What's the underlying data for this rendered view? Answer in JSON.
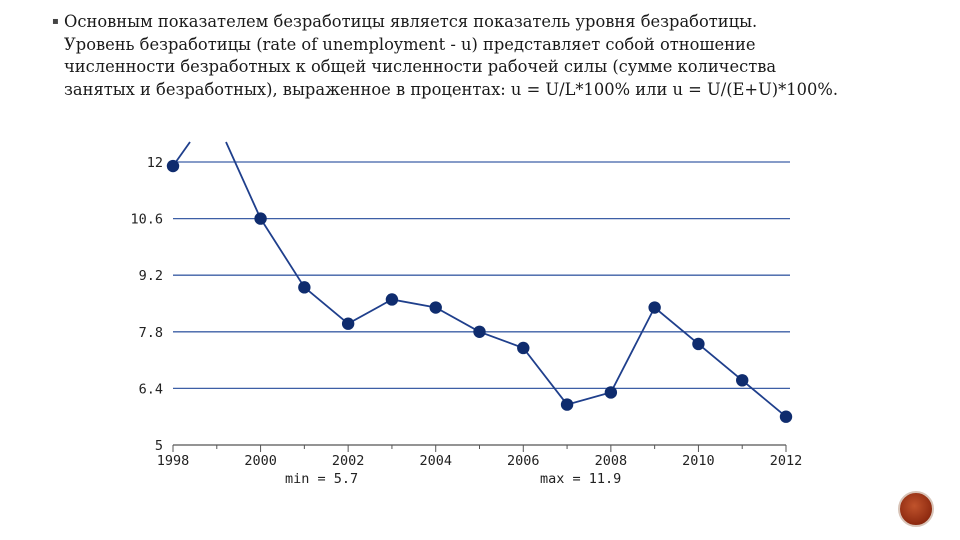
{
  "slide": {
    "bullet_icon": "square-bullet",
    "paragraph_lines": [
      "Основным показателем безработицы является показатель уровня безработицы.",
      "Уровень безработицы (rate of unemployment - u) представляет собой отношение",
      "численности безработных к общей численности рабочей силы (сумме количества",
      "занятых и безработных), выраженное в процентах: u = U/L*100% или u = U/(E+U)*100%."
    ],
    "page_number": ""
  },
  "chart_data": {
    "type": "line",
    "title": "",
    "xlabel": "",
    "ylabel": "",
    "x": [
      1998,
      1999,
      2000,
      2001,
      2002,
      2003,
      2004,
      2005,
      2006,
      2007,
      2008,
      2009,
      2010,
      2011,
      2012
    ],
    "values": [
      11.9,
      null,
      10.6,
      8.9,
      8.0,
      8.6,
      8.4,
      7.8,
      7.4,
      6.0,
      6.3,
      8.4,
      7.5,
      6.6,
      5.7
    ],
    "xlim": [
      1998,
      2012
    ],
    "ylim": [
      5,
      12
    ],
    "y_ticks": [
      "12",
      "10.6",
      "9.2",
      "7.8",
      "6.4",
      "5"
    ],
    "x_ticks": [
      "1998",
      "2000",
      "2002",
      "2004",
      "2006",
      "2008",
      "2010",
      "2012"
    ],
    "grid": "horizontal",
    "stats": {
      "min": "min = 5.7",
      "max": "max = 11.9"
    },
    "colors": {
      "line": "#1f3f8c",
      "marker": "#0f2c6e",
      "grid": "#3d5fa6",
      "axis": "#555555"
    }
  }
}
